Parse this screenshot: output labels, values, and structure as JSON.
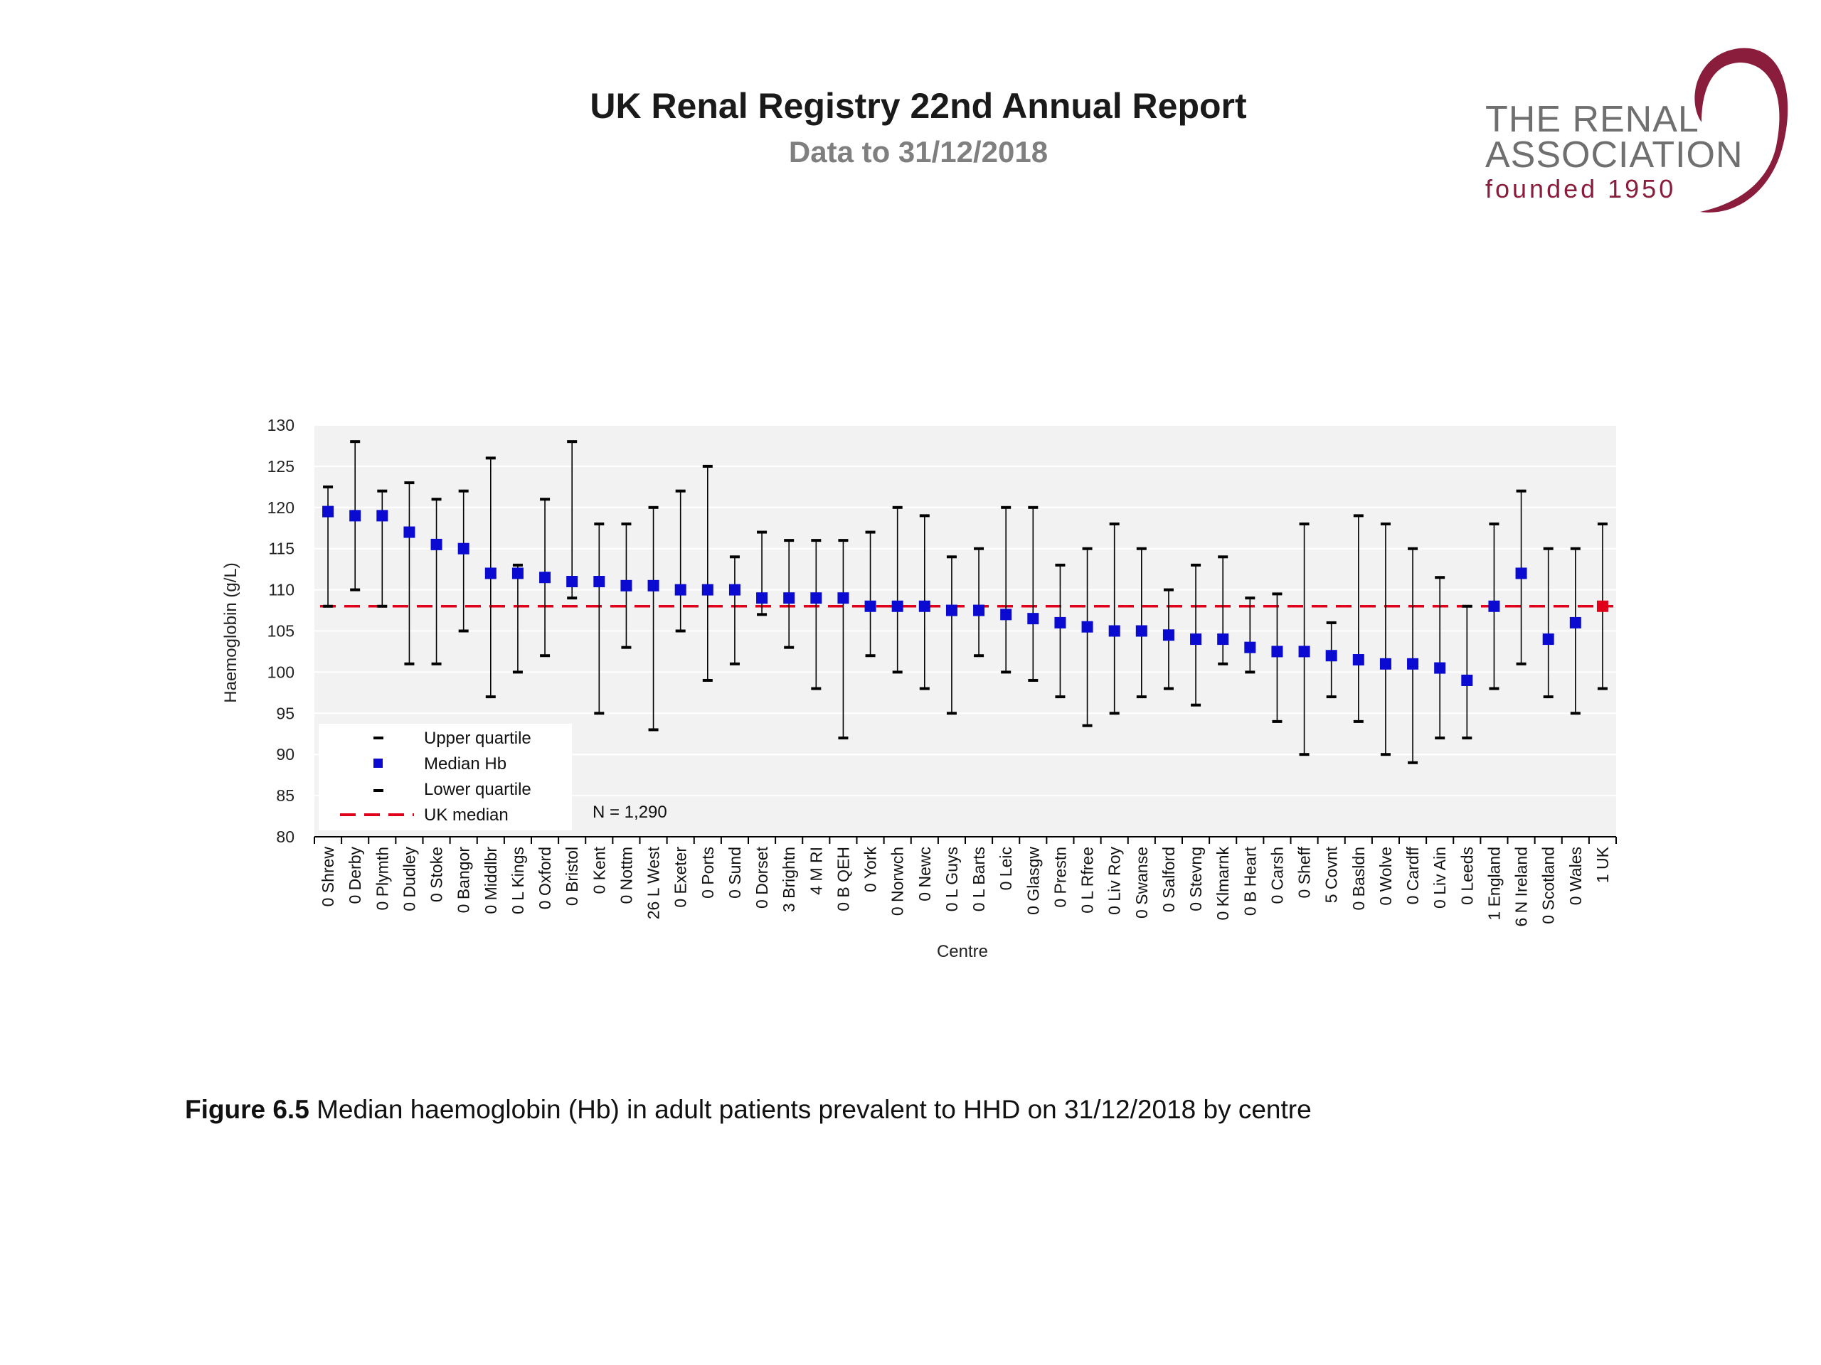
{
  "slide": {
    "title": "UK Renal Registry 22nd Annual Report",
    "subtitle": "Data to 31/12/2018"
  },
  "logo": {
    "line1": "THE RENAL",
    "line2": "ASSOCIATION",
    "line3": "founded 1950",
    "color_text": "#6f6f6f",
    "color_accent": "#8a1c3c"
  },
  "caption": {
    "label": "Figure 6.5",
    "text": "Median haemoglobin (Hb) in adult patients prevalent to HHD on 31/12/2018 by centre"
  },
  "chart_data": {
    "type": "scatter",
    "xlabel": "Centre",
    "ylabel": "Haemoglobin (g/L)",
    "ylim": [
      80,
      130
    ],
    "yticks": [
      80,
      85,
      90,
      95,
      100,
      105,
      110,
      115,
      120,
      125,
      130
    ],
    "grid": true,
    "annotation": "N = 1,290",
    "legend": {
      "position": "bottom-left",
      "entries": [
        "Upper quartile",
        "Median Hb",
        "Lower quartile",
        "UK median"
      ]
    },
    "uk_median": 108,
    "colors": {
      "median": "#0a0ad0",
      "uk_point": "#e0001a",
      "uk_median_line": "#e0001a",
      "whisker": "#000000",
      "plot_bg": "#f2f2f2",
      "grid": "#ffffff"
    },
    "categories": [
      "0 Shrew",
      "0 Derby",
      "0 Plymth",
      "0 Dudley",
      "0 Stoke",
      "0 Bangor",
      "0 Middlbr",
      "0 L Kings",
      "0 Oxford",
      "0 Bristol",
      "0 Kent",
      "0 Nottm",
      "26 L West",
      "0 Exeter",
      "0 Ports",
      "0 Sund",
      "0 Dorset",
      "3 Brightn",
      "4 M RI",
      "0 B QEH",
      "0 York",
      "0 Norwch",
      "0 Newc",
      "0 L Guys",
      "0 L Barts",
      "0 Leic",
      "0 Glasgw",
      "0 Prestn",
      "0 L Rfree",
      "0 Liv Roy",
      "0 Swanse",
      "0 Salford",
      "0 Stevng",
      "0 Klmarnk",
      "0 B Heart",
      "0 Carsh",
      "0 Sheff",
      "5 Covnt",
      "0 Basldn",
      "0 Wolve",
      "0 Cardff",
      "0 Liv Ain",
      "0 Leeds",
      "1 England",
      "6 N Ireland",
      "0 Scotland",
      "0 Wales",
      "1 UK"
    ],
    "series": [
      {
        "name": "Median Hb",
        "values": [
          119.5,
          119,
          119,
          117,
          115.5,
          115,
          112,
          112,
          111.5,
          111,
          111,
          110.5,
          110.5,
          110,
          110,
          110,
          109,
          109,
          109,
          109,
          108,
          108,
          108,
          107.5,
          107.5,
          107,
          106.5,
          106,
          105.5,
          105,
          105,
          104.5,
          104,
          104,
          103,
          102.5,
          102.5,
          102,
          101.5,
          101,
          101,
          100.5,
          99,
          108,
          112,
          104,
          106,
          108
        ]
      },
      {
        "name": "Upper quartile",
        "values": [
          122.5,
          128,
          122,
          123,
          121,
          122,
          126,
          113,
          121,
          128,
          118,
          118,
          120,
          122,
          125,
          114,
          117,
          116,
          116,
          116,
          117,
          120,
          119,
          114,
          115,
          120,
          120,
          113,
          115,
          118,
          115,
          110,
          113,
          114,
          109,
          109.5,
          118,
          106,
          119,
          118,
          115,
          111.5,
          108,
          118,
          122,
          115,
          115,
          118
        ]
      },
      {
        "name": "Lower quartile",
        "values": [
          108,
          110,
          108,
          101,
          101,
          105,
          97,
          100,
          102,
          109,
          95,
          103,
          93,
          105,
          99,
          101,
          107,
          103,
          98,
          92,
          102,
          100,
          98,
          95,
          102,
          100,
          99,
          97,
          93.5,
          95,
          97,
          98,
          96,
          101,
          100,
          94,
          90,
          97,
          94,
          90,
          89,
          92,
          92,
          98,
          101,
          97,
          95,
          98
        ]
      }
    ]
  }
}
